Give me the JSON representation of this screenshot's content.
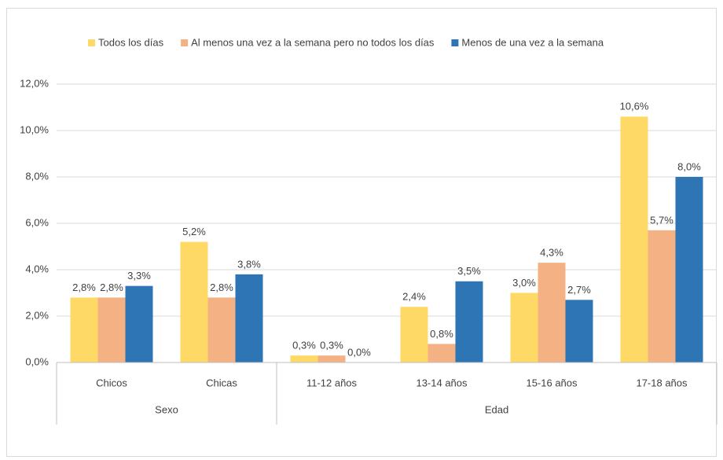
{
  "chart_data": {
    "type": "bar",
    "groups": [
      {
        "name": "Sexo",
        "categories": [
          "Chicos",
          "Chicas"
        ]
      },
      {
        "name": "Edad",
        "categories": [
          "11-12 años",
          "13-14 años",
          "15-16 años",
          "17-18 años"
        ]
      }
    ],
    "series": [
      {
        "name": "Todos los días",
        "color": "#ffd966",
        "values": [
          2.8,
          5.2,
          0.3,
          2.4,
          3.0,
          10.6
        ],
        "value_labels": [
          "2,8%",
          "5,2%",
          "0,3%",
          "2,4%",
          "3,0%",
          "10,6%"
        ]
      },
      {
        "name": "Al menos una vez a la semana pero no todos los días",
        "color": "#f4b183",
        "values": [
          2.8,
          2.8,
          0.3,
          0.8,
          4.3,
          5.7
        ],
        "value_labels": [
          "2,8%",
          "2,8%",
          "0,3%",
          "0,8%",
          "4,3%",
          "5,7%"
        ]
      },
      {
        "name": "Menos de una vez a la semana",
        "color": "#2e75b6",
        "values": [
          3.3,
          3.8,
          0.0,
          3.5,
          2.7,
          8.0
        ],
        "value_labels": [
          "3,3%",
          "3,8%",
          "0,0%",
          "3,5%",
          "2,7%",
          "8,0%"
        ]
      }
    ],
    "ylim": [
      0,
      12
    ],
    "yticks": [
      {
        "value": 0,
        "label": "0,0%"
      },
      {
        "value": 2,
        "label": "2,0%"
      },
      {
        "value": 4,
        "label": "4,0%"
      },
      {
        "value": 6,
        "label": "6,0%"
      },
      {
        "value": 8,
        "label": "8,0%"
      },
      {
        "value": 10,
        "label": "10,0%"
      },
      {
        "value": 12,
        "label": "12,0%"
      }
    ],
    "grid": true,
    "legend": "top"
  }
}
